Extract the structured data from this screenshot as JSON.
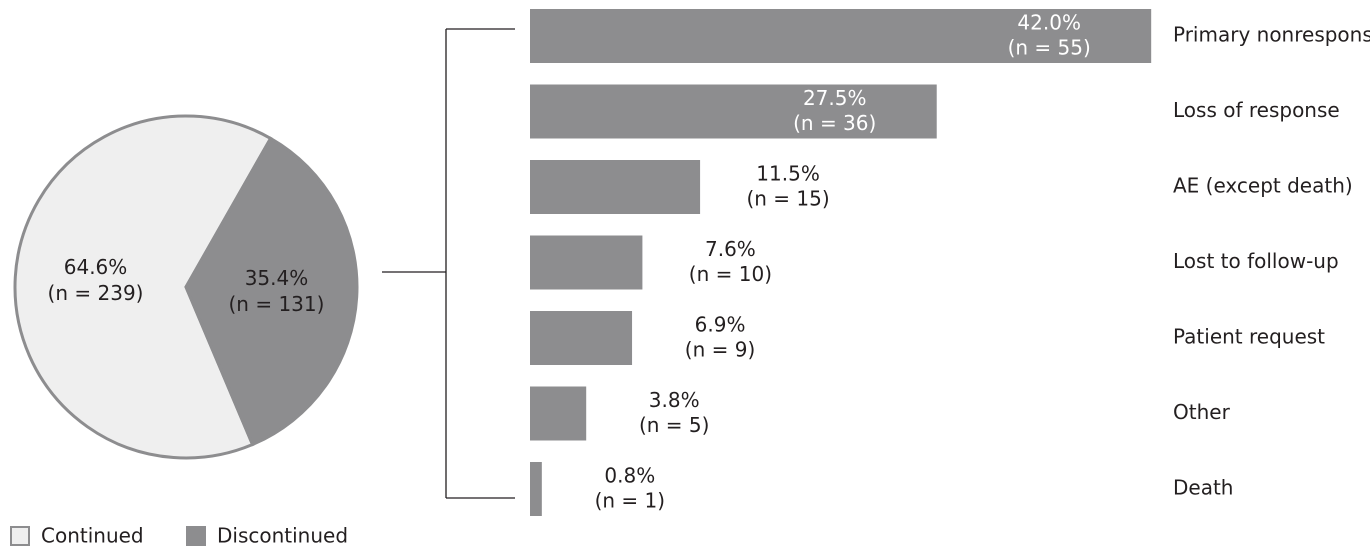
{
  "chart_data": [
    {
      "type": "pie",
      "categories": [
        "Continued",
        "Discontinued"
      ],
      "values": [
        64.6,
        35.4
      ],
      "value_labels": [
        "64.6%",
        "35.4%"
      ],
      "count_labels": [
        "(n = 239)",
        "(n = 131)"
      ],
      "colors": [
        "#efefef",
        "#8d8d8f"
      ],
      "legend": "bottom-left"
    },
    {
      "type": "bar",
      "orientation": "horizontal",
      "categories": [
        "Primary nonresponse",
        "Loss of response",
        "AE (except death)",
        "Lost to follow-up",
        "Patient request",
        "Other",
        "Death"
      ],
      "values": [
        42.0,
        27.5,
        11.5,
        7.6,
        6.9,
        3.8,
        0.8
      ],
      "value_labels": [
        "42.0%",
        "27.5%",
        "11.5%",
        "7.6%",
        "6.9%",
        "3.8%",
        "0.8%"
      ],
      "count_labels": [
        "(n = 55)",
        "(n = 36)",
        "(n = 15)",
        "(n = 10)",
        "(n = 9)",
        "(n = 5)",
        "(n = 1)"
      ],
      "color": "#8d8d8f"
    }
  ]
}
